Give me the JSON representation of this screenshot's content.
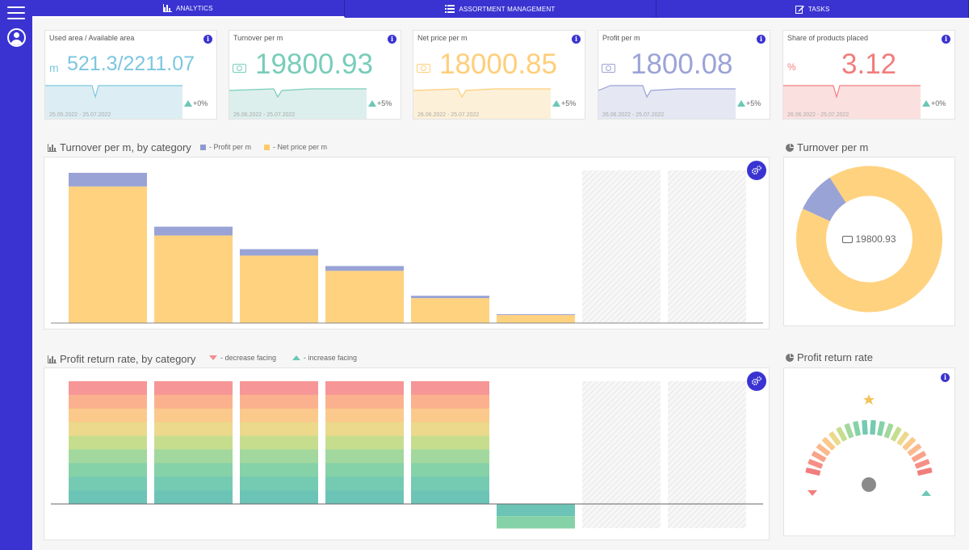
{
  "nav": {
    "tabs": [
      {
        "label": "ANALYTICS",
        "icon": "bar-chart-icon",
        "active": true
      },
      {
        "label": "ASSORTMENT MANAGEMENT",
        "icon": "list-icon",
        "active": false
      },
      {
        "label": "TASKS",
        "icon": "edit-icon",
        "active": false
      }
    ]
  },
  "colors": {
    "brand": "#3a33d1",
    "profit": "#9aa3d6",
    "net_price": "#ffd27f",
    "teal": "#6cc7b5",
    "red": "#f18e8e"
  },
  "kpis": [
    {
      "title": "Used area / Available area",
      "unit": "m",
      "value": "521.3/2211.07",
      "date": "25.05.2022 - 25.07.2022",
      "delta": "+0%",
      "color": "#7cc6e0",
      "fill": "#dceef3"
    },
    {
      "title": "Turnover per m",
      "unit_icon": "money-icon",
      "value": "19800.93",
      "date": "26.06.2022 - 25.07.2022",
      "delta": "+5%",
      "color": "#78cdb9",
      "fill": "#dcefec"
    },
    {
      "title": "Net price per m",
      "unit_icon": "money-icon",
      "value": "18000.85",
      "date": "26.06.2022 - 25.07.2022",
      "delta": "+5%",
      "color": "#ffce7a",
      "fill": "#fdf0d8"
    },
    {
      "title": "Profit per m",
      "unit_icon": "money-icon",
      "value": "1800.08",
      "date": "26.06.2022 - 25.07.2022",
      "delta": "+5%",
      "color": "#9ca3d6",
      "fill": "#e5e7f3"
    },
    {
      "title": "Share of products placed",
      "unit": "%",
      "value": "3.12",
      "date": "26.06.2022 - 25.07.2022",
      "delta": "+0%",
      "color": "#f27d7d",
      "fill": "#fbe0e0"
    }
  ],
  "turnover_chart": {
    "title": "Turnover per m, by category",
    "legend": [
      {
        "label": "- Profit per m",
        "color": "#8f99cf"
      },
      {
        "label": "- Net price per m",
        "color": "#ffc96b"
      }
    ]
  },
  "turnover_donut": {
    "title": "Turnover per m",
    "center_value": "19800.93"
  },
  "profit_chart": {
    "title": "Profit return rate, by category",
    "legend": [
      {
        "label": "- decrease facing",
        "marker": "down"
      },
      {
        "label": "- increase facing",
        "marker": "up"
      }
    ]
  },
  "profit_gauge": {
    "title": "Profit return rate"
  },
  "chart_data": [
    {
      "type": "bar",
      "stacked": true,
      "categories": [
        "",
        "",
        "",
        "",
        "",
        "",
        "",
        ""
      ],
      "series": [
        {
          "name": "- Net price per m",
          "values": [
            170,
            109,
            84,
            65,
            31,
            10,
            null,
            null
          ]
        },
        {
          "name": "- Profit per m",
          "values": [
            17,
            11,
            8,
            6,
            3,
            1,
            null,
            null
          ]
        }
      ],
      "empty_slots": [
        6,
        7
      ],
      "ylim": [
        0,
        190
      ],
      "grid": false
    },
    {
      "type": "pie",
      "donut": true,
      "slices": [
        {
          "name": "Net price per m",
          "value": 18000.85
        },
        {
          "name": "Profit per m",
          "value": 1800.08
        }
      ],
      "center_label": "19800.93"
    },
    {
      "type": "bar",
      "categories": [
        "",
        "",
        "",
        "",
        "",
        "",
        "",
        ""
      ],
      "values": [
        150,
        150,
        150,
        150,
        150,
        -30,
        null,
        null
      ],
      "empty_slots": [
        6,
        7
      ],
      "ylim": [
        -30,
        150
      ],
      "grid": false,
      "gradient": [
        "#f79696",
        "#fbb18e",
        "#fbc98b",
        "#ecd98b",
        "#c7dd8e",
        "#a2d89e",
        "#86d2a8",
        "#75cbb2",
        "#6cc4b7"
      ]
    }
  ]
}
